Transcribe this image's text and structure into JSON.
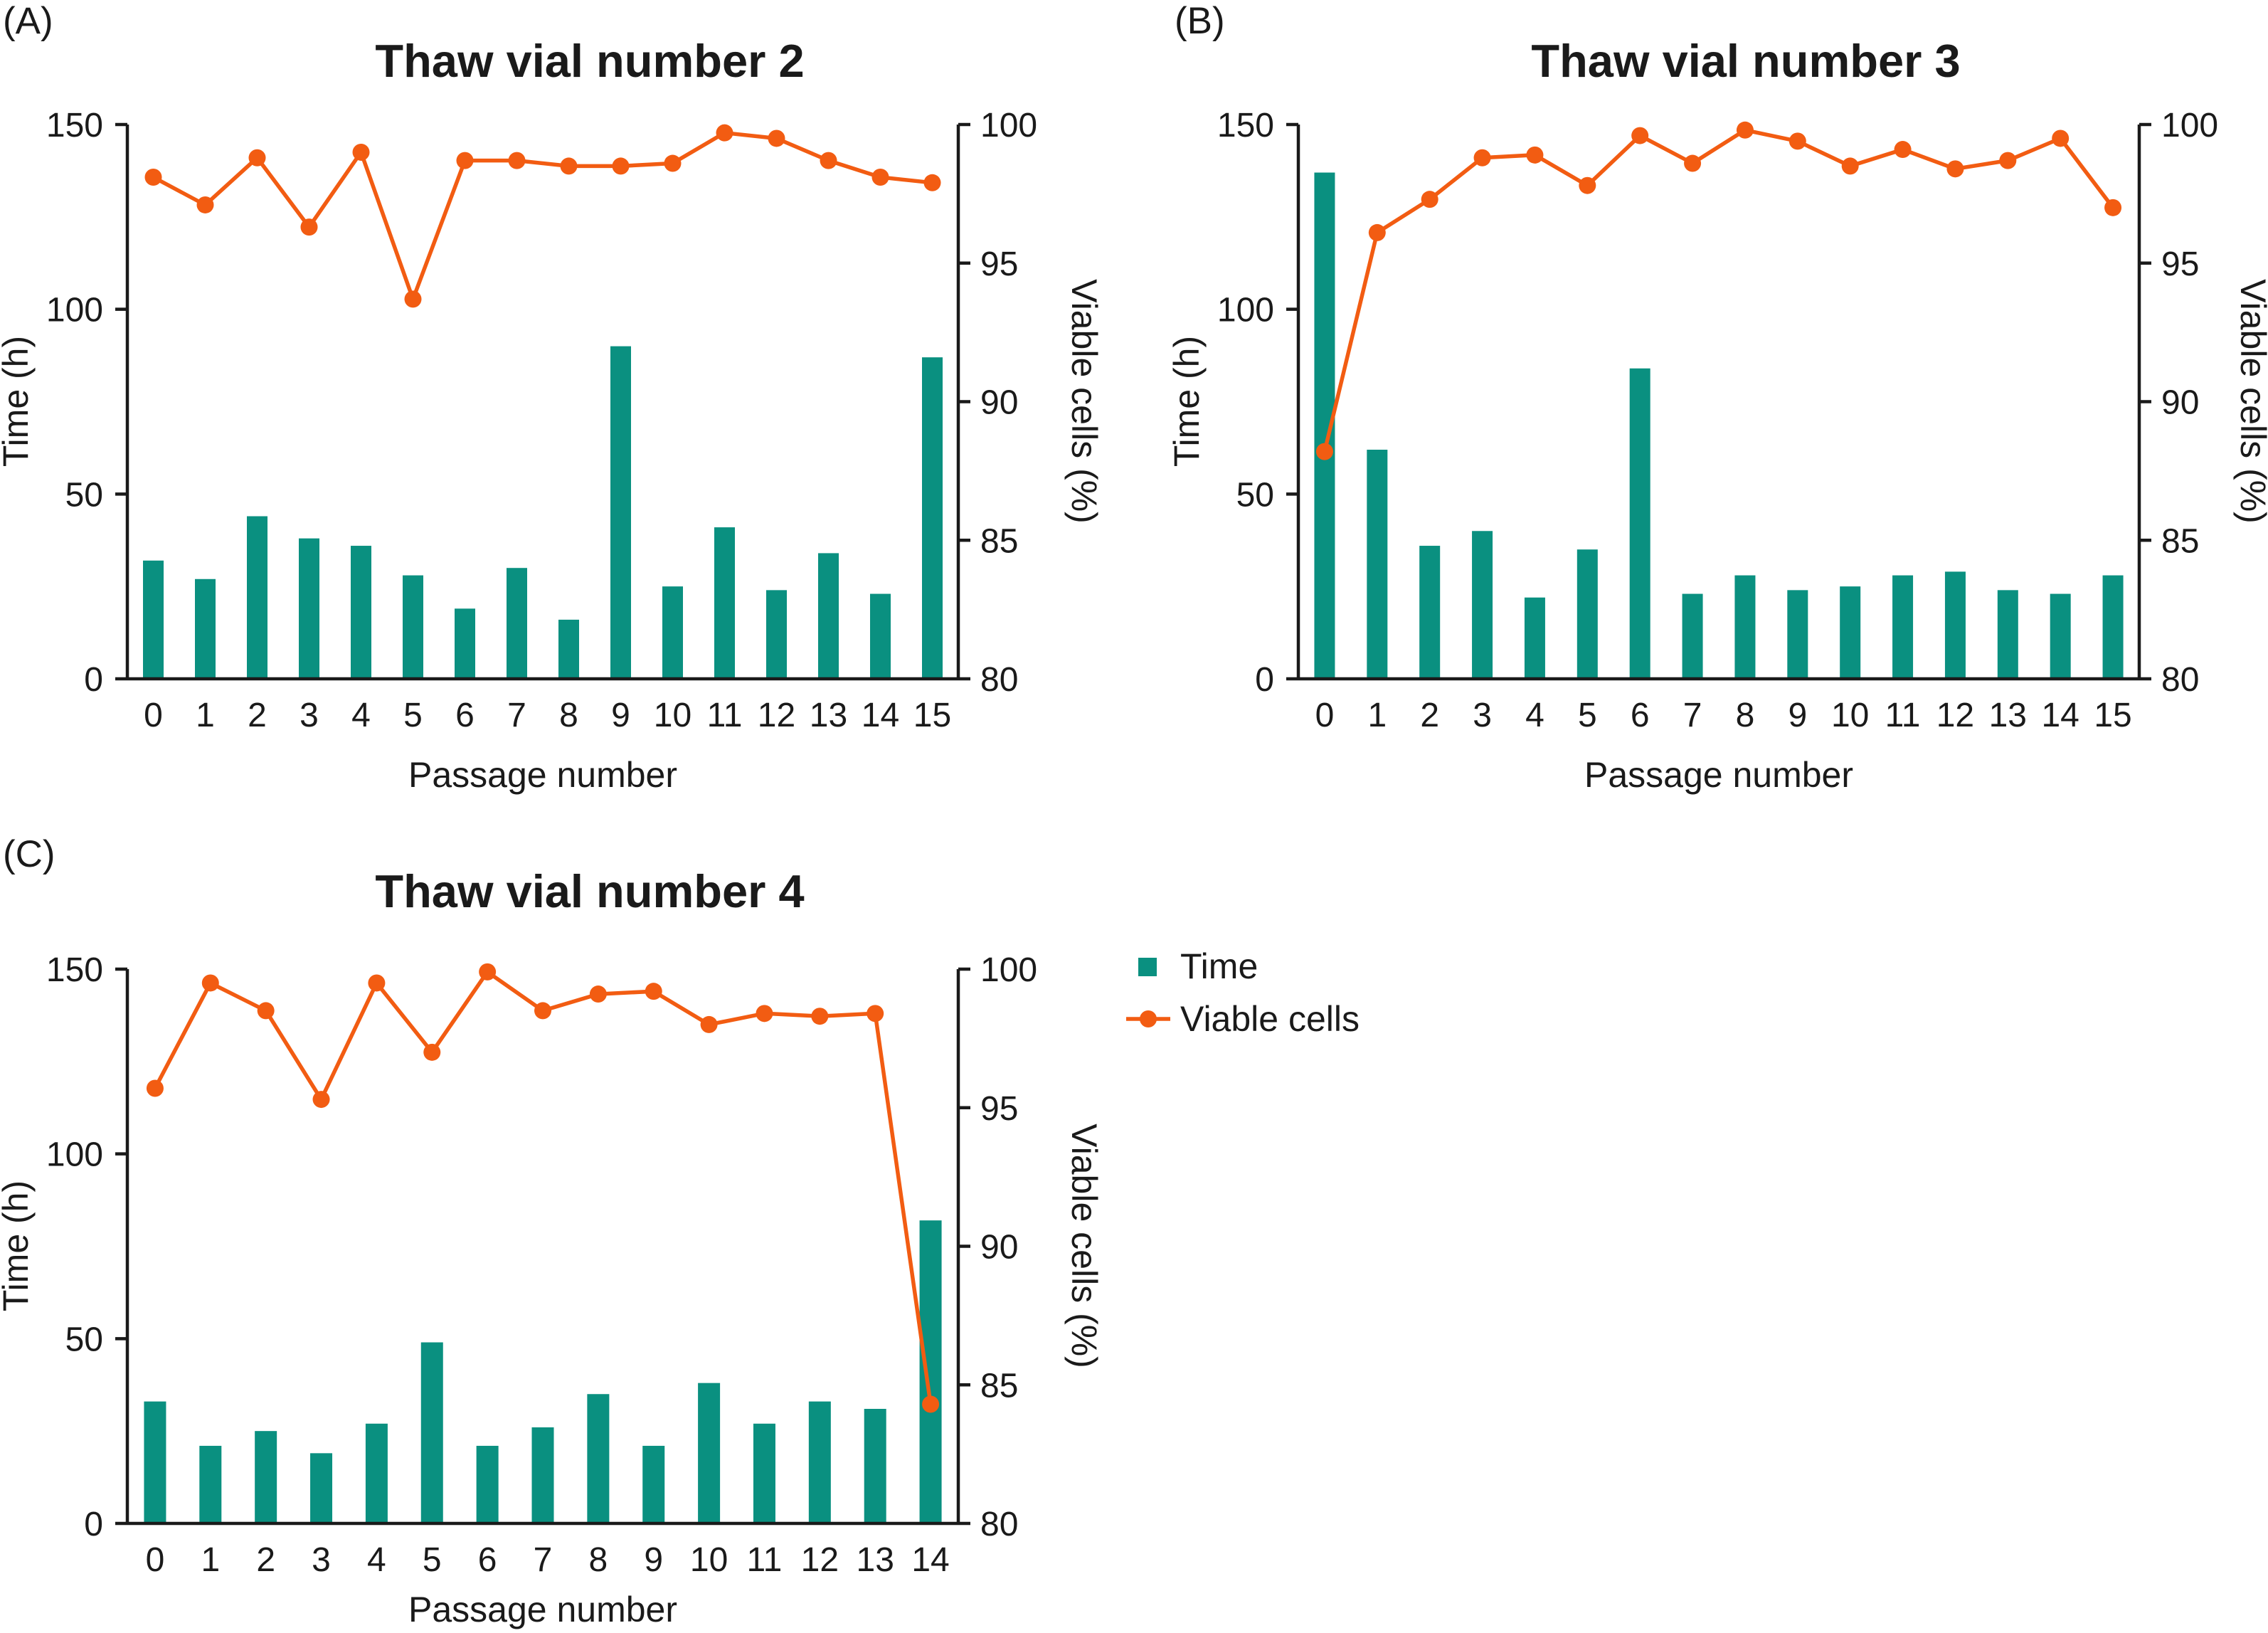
{
  "figure": {
    "kind": "three-panel bar+line combo chart",
    "background": "#ffffff"
  },
  "colors": {
    "bar_teal": "#0a9080",
    "line_orange": "#f25c12",
    "text": "#1a1a1a",
    "axis": "#1a1a1a"
  },
  "legend": {
    "items": [
      {
        "label": "Time",
        "marker": "square",
        "color": "#0a9080"
      },
      {
        "label": "Viable cells",
        "marker": "line-dot",
        "color": "#f25c12"
      }
    ]
  },
  "chart_data": [
    {
      "type": "bar-line",
      "panel_letter": "(A)",
      "title": "Thaw vial number 2",
      "xlabel": "Passage number",
      "ylabel_left": "Time (h)",
      "ylabel_right": "Viable cells (%)",
      "ylim_left": [
        0,
        150
      ],
      "ylim_right": [
        80,
        100
      ],
      "y_left_ticks": [
        0,
        50,
        100,
        150
      ],
      "y_right_ticks": [
        80,
        85,
        90,
        95,
        100
      ],
      "categories": [
        0,
        1,
        2,
        3,
        4,
        5,
        6,
        7,
        8,
        9,
        10,
        11,
        12,
        13,
        14,
        15
      ],
      "series": [
        {
          "name": "Time",
          "type": "bar",
          "axis": "left",
          "values": [
            32,
            27,
            44,
            38,
            36,
            28,
            19,
            30,
            16,
            90,
            25,
            41,
            24,
            34,
            23,
            87
          ]
        },
        {
          "name": "Viable cells",
          "type": "line",
          "axis": "right",
          "values": [
            98.1,
            97.1,
            98.8,
            96.3,
            99.0,
            93.7,
            98.7,
            98.7,
            98.5,
            98.5,
            98.6,
            99.7,
            99.5,
            98.7,
            98.1,
            97.9
          ]
        }
      ]
    },
    {
      "type": "bar-line",
      "panel_letter": "(B)",
      "title": "Thaw vial number 3",
      "xlabel": "Passage number",
      "ylabel_left": "Time (h)",
      "ylabel_right": "Viable cells (%)",
      "ylim_left": [
        0,
        150
      ],
      "ylim_right": [
        80,
        100
      ],
      "y_left_ticks": [
        0,
        50,
        100,
        150
      ],
      "y_right_ticks": [
        80,
        85,
        90,
        95,
        100
      ],
      "categories": [
        0,
        1,
        2,
        3,
        4,
        5,
        6,
        7,
        8,
        9,
        10,
        11,
        12,
        13,
        14,
        15
      ],
      "series": [
        {
          "name": "Time",
          "type": "bar",
          "axis": "left",
          "values": [
            137,
            62,
            36,
            40,
            22,
            35,
            84,
            23,
            28,
            24,
            25,
            28,
            29,
            24,
            23,
            28
          ]
        },
        {
          "name": "Viable cells",
          "type": "line",
          "axis": "right",
          "values": [
            88.2,
            96.1,
            97.3,
            98.8,
            98.9,
            97.8,
            99.6,
            98.6,
            99.8,
            99.4,
            98.5,
            99.1,
            98.4,
            98.7,
            99.5,
            97.0
          ]
        }
      ]
    },
    {
      "type": "bar-line",
      "panel_letter": "(C)",
      "title": "Thaw vial number 4",
      "xlabel": "Passage number",
      "ylabel_left": "Time (h)",
      "ylabel_right": "Viable cells (%)",
      "ylim_left": [
        0,
        150
      ],
      "ylim_right": [
        80,
        100
      ],
      "y_left_ticks": [
        0,
        50,
        100,
        150
      ],
      "y_right_ticks": [
        80,
        85,
        90,
        95,
        100
      ],
      "categories": [
        0,
        1,
        2,
        3,
        4,
        5,
        6,
        7,
        8,
        9,
        10,
        11,
        12,
        13,
        14
      ],
      "series": [
        {
          "name": "Time",
          "type": "bar",
          "axis": "left",
          "values": [
            33,
            21,
            25,
            19,
            27,
            49,
            21,
            26,
            35,
            21,
            38,
            27,
            33,
            31,
            82
          ]
        },
        {
          "name": "Viable cells",
          "type": "line",
          "axis": "right",
          "values": [
            95.7,
            99.5,
            98.5,
            95.3,
            99.5,
            97.0,
            99.9,
            98.5,
            99.1,
            99.2,
            98.0,
            98.4,
            98.3,
            98.4,
            84.3
          ]
        }
      ]
    }
  ]
}
